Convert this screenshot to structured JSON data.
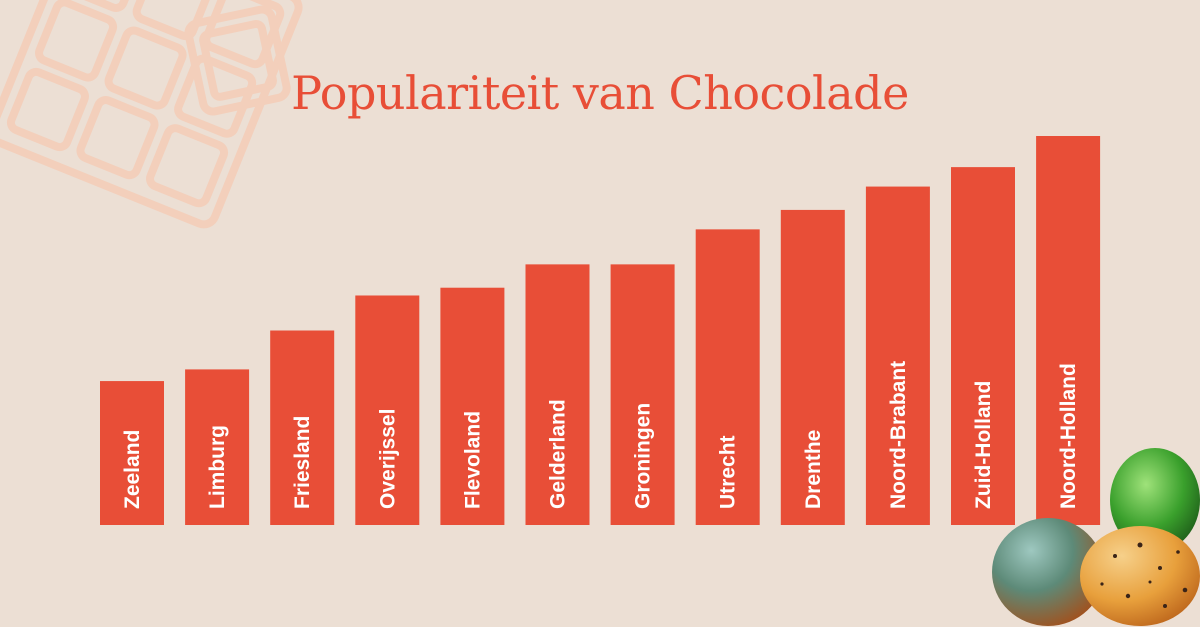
{
  "chart_data": {
    "type": "bar",
    "title": "Populariteit van Chocolade",
    "categories": [
      "Zeeland",
      "Limburg",
      "Friesland",
      "Overijssel",
      "Flevoland",
      "Gelderland",
      "Groningen",
      "Utrecht",
      "Drenthe",
      "Noord-Brabant",
      "Zuid-Holland",
      "Noord-Holland"
    ],
    "values": [
      37,
      40,
      50,
      59,
      61,
      67,
      67,
      76,
      81,
      87,
      92,
      100
    ],
    "ylim": [
      0,
      100
    ],
    "grid": false,
    "legend": "none",
    "bar_color": "#e84e37",
    "label_color": "#ffffff",
    "label_placement": "inside-bar-vertical"
  },
  "colors": {
    "background": "#ecdfd4",
    "accent": "#e84e37",
    "decoration": "#f3cfbb"
  }
}
